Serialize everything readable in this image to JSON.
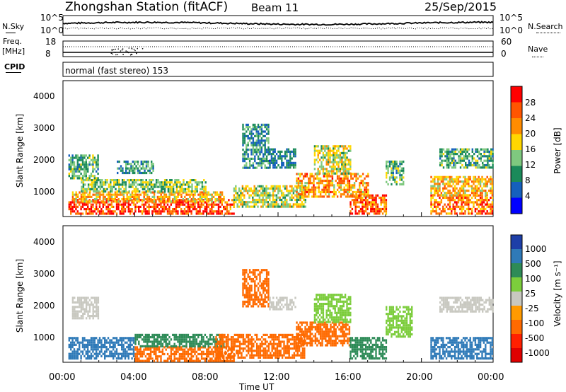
{
  "header": {
    "title": "Zhongshan Station (fitACF)",
    "beam": "Beam 11",
    "date": "25/Sep/2015"
  },
  "top_panels": {
    "nsky_label": "N.Sky",
    "nsearch_label": "N.Search",
    "nsky_ticks": [
      "10^5",
      "10^0"
    ],
    "nsearch_ticks": [
      "10^5",
      "10^0"
    ],
    "freq_label_line1": "Freq.",
    "freq_label_line2": "[MHz]",
    "freq_ticks": [
      "18",
      "8"
    ],
    "nave_label": "Nave",
    "nave_ticks": [
      "60",
      "0"
    ],
    "cpid_label": "CPID",
    "cpid_text": "normal (fast stereo) 153"
  },
  "axes": {
    "x_ticks": [
      "00:00",
      "04:00",
      "08:00",
      "12:00",
      "16:00",
      "20:00",
      "00:00"
    ],
    "x_label": "Time UT",
    "y_label": "Slant Range [km]",
    "y_ticks": [
      "1000",
      "2000",
      "3000",
      "4000"
    ]
  },
  "colorbars": {
    "power": {
      "label": "Power [dB]",
      "ticks": [
        "28",
        "24",
        "20",
        "16",
        "12",
        "8",
        "4"
      ],
      "colors": [
        "#ff0000",
        "#ff5500",
        "#ff8c00",
        "#ffd700",
        "#7fc97f",
        "#1b8a5a",
        "#1560bd",
        "#0000ff"
      ]
    },
    "velocity": {
      "label": "Velocity [m s⁻¹]",
      "ticks": [
        "1000",
        "500",
        "100",
        "25",
        "-25",
        "-100",
        "-500",
        "-1000"
      ],
      "colors": [
        "#1e3fa8",
        "#2f7ab8",
        "#2e8b57",
        "#7ccd3c",
        "#c8c8c0",
        "#ff9a00",
        "#ff6a00",
        "#ff2000",
        "#e00000"
      ]
    }
  },
  "chart_data": [
    {
      "type": "heatmap",
      "panel": "power",
      "x_range_hours": [
        0,
        24
      ],
      "y_range_km": [
        180,
        4600
      ],
      "blobs": [
        {
          "t0": 0.3,
          "t1": 9.5,
          "r0": 250,
          "r1": 750,
          "value": 26
        },
        {
          "t0": 0.5,
          "t1": 9.0,
          "r0": 700,
          "r1": 1000,
          "value": 18
        },
        {
          "t0": 1.0,
          "t1": 8.0,
          "r0": 1000,
          "r1": 1400,
          "value": 12
        },
        {
          "t0": 0.3,
          "t1": 2.0,
          "r0": 1400,
          "r1": 2200,
          "value": 10
        },
        {
          "t0": 3.0,
          "t1": 5.0,
          "r0": 1600,
          "r1": 2000,
          "value": 8
        },
        {
          "t0": 9.5,
          "t1": 13.5,
          "r0": 500,
          "r1": 1200,
          "value": 14
        },
        {
          "t0": 10.0,
          "t1": 11.5,
          "r0": 1800,
          "r1": 3200,
          "value": 8
        },
        {
          "t0": 11.5,
          "t1": 13.0,
          "r0": 1800,
          "r1": 2400,
          "value": 6
        },
        {
          "t0": 13.0,
          "t1": 17.0,
          "r0": 800,
          "r1": 1600,
          "value": 20
        },
        {
          "t0": 14.0,
          "t1": 16.0,
          "r0": 1600,
          "r1": 2500,
          "value": 14
        },
        {
          "t0": 16.0,
          "t1": 18.0,
          "r0": 250,
          "r1": 900,
          "value": 24
        },
        {
          "t0": 18.0,
          "t1": 19.0,
          "r0": 1200,
          "r1": 2000,
          "value": 10
        },
        {
          "t0": 20.5,
          "t1": 24.0,
          "r0": 300,
          "r1": 900,
          "value": 22
        },
        {
          "t0": 20.5,
          "t1": 24.0,
          "r0": 900,
          "r1": 1500,
          "value": 18
        },
        {
          "t0": 21.0,
          "t1": 24.0,
          "r0": 1800,
          "r1": 2400,
          "value": 10
        }
      ]
    },
    {
      "type": "heatmap",
      "panel": "velocity",
      "x_range_hours": [
        0,
        24
      ],
      "y_range_km": [
        180,
        4600
      ],
      "blobs": [
        {
          "t0": 0.3,
          "t1": 4.0,
          "r0": 300,
          "r1": 1000,
          "value": 800
        },
        {
          "t0": 4.0,
          "t1": 9.5,
          "r0": 250,
          "r1": 700,
          "value": -300
        },
        {
          "t0": 4.0,
          "t1": 9.0,
          "r0": 700,
          "r1": 1100,
          "value": 200
        },
        {
          "t0": 0.5,
          "t1": 2.0,
          "r0": 1600,
          "r1": 2300,
          "value": 0
        },
        {
          "t0": 8.5,
          "t1": 13.5,
          "r0": 300,
          "r1": 1100,
          "value": -200
        },
        {
          "t0": 10.0,
          "t1": 11.5,
          "r0": 2000,
          "r1": 3200,
          "value": -150
        },
        {
          "t0": 11.5,
          "t1": 13.0,
          "r0": 1900,
          "r1": 2300,
          "value": 0
        },
        {
          "t0": 13.0,
          "t1": 16.0,
          "r0": 700,
          "r1": 1500,
          "value": -300
        },
        {
          "t0": 14.0,
          "t1": 16.0,
          "r0": 1500,
          "r1": 2400,
          "value": 60
        },
        {
          "t0": 16.0,
          "t1": 18.0,
          "r0": 300,
          "r1": 1000,
          "value": 400
        },
        {
          "t0": 18.0,
          "t1": 19.5,
          "r0": 1000,
          "r1": 2000,
          "value": 60
        },
        {
          "t0": 20.5,
          "t1": 24.0,
          "r0": 300,
          "r1": 1000,
          "value": 800
        },
        {
          "t0": 21.0,
          "t1": 24.0,
          "r0": 1800,
          "r1": 2300,
          "value": 0
        }
      ]
    }
  ]
}
